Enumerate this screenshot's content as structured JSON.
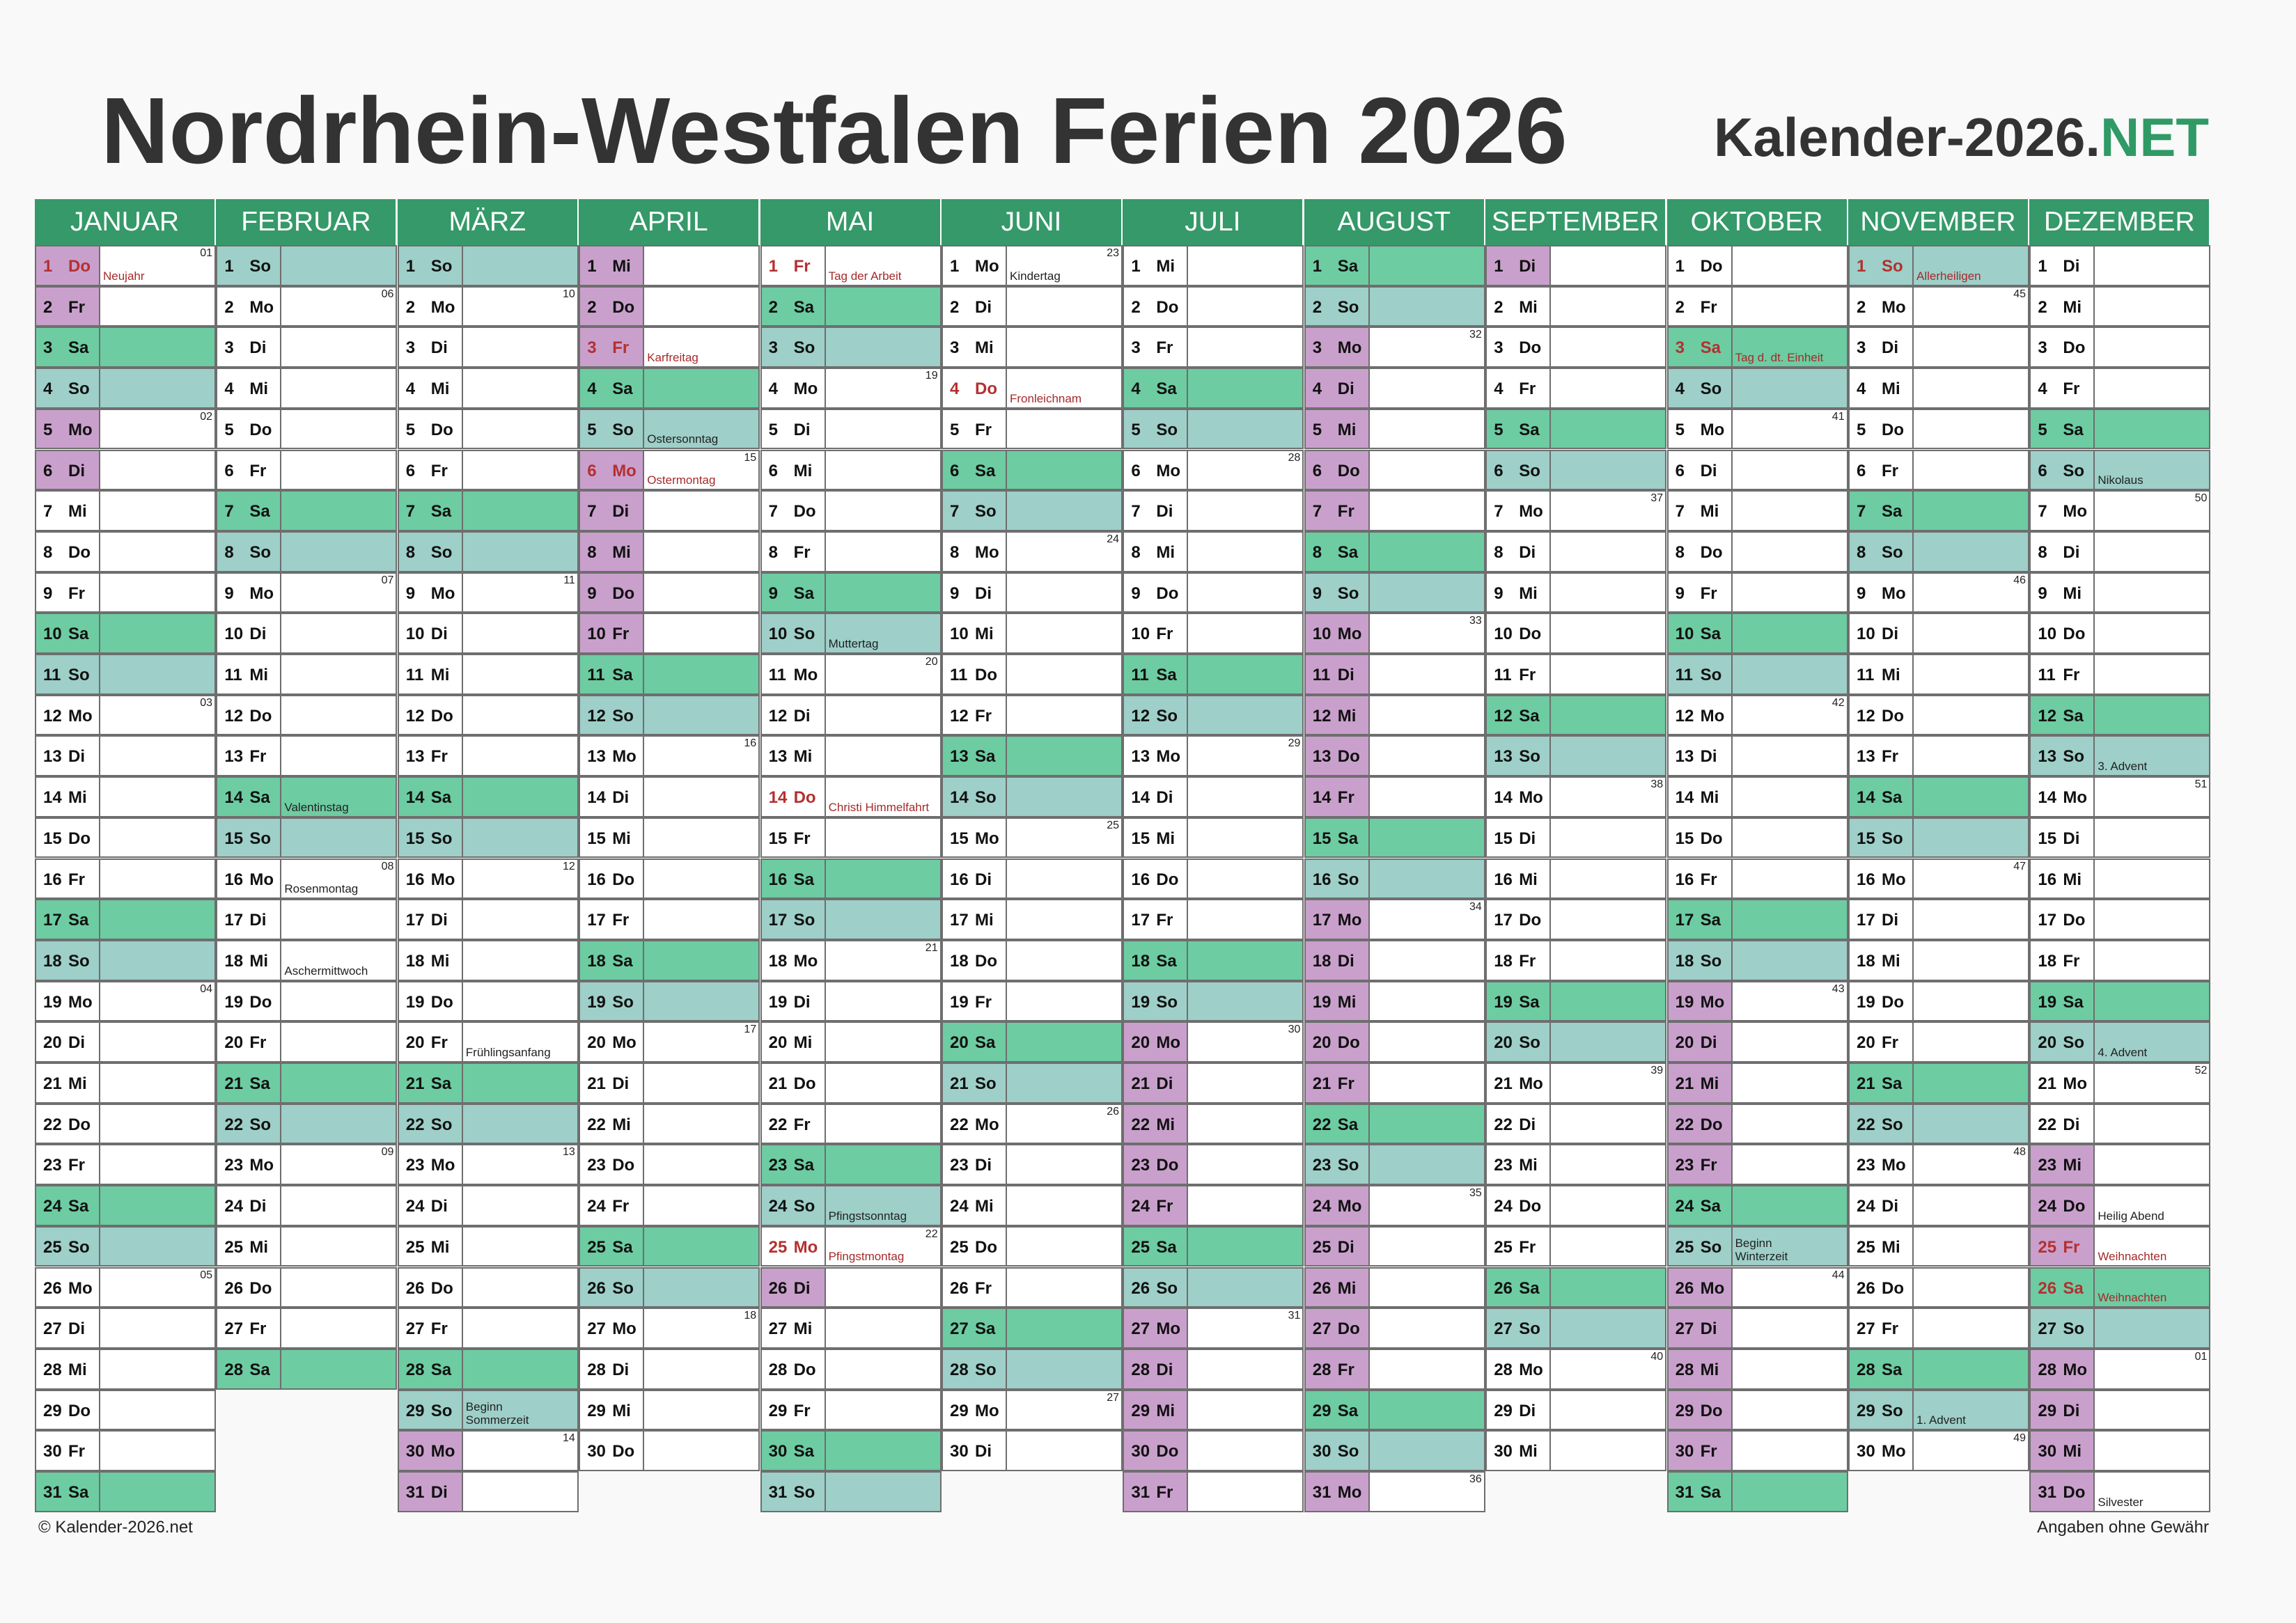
{
  "title": "Nordrhein-Westfalen Ferien 2026",
  "brand": {
    "main": "Kalender-2026.",
    "accent": ".NET"
  },
  "footer": {
    "left": "© Kalender-2026.net",
    "right": "Angaben ohne Gewähr"
  },
  "colors": {
    "header": "#35996a",
    "saturday": "#6dcca2",
    "sunday": "#9ecfc9",
    "vacation": "#c9a0cc",
    "holiday_text": "#b43030"
  },
  "year": 2026,
  "months": [
    "JANUAR",
    "FEBRUAR",
    "MÄRZ",
    "APRIL",
    "MAI",
    "JUNI",
    "JULI",
    "AUGUST",
    "SEPTEMBER",
    "OKTOBER",
    "NOVEMBER",
    "DEZEMBER"
  ],
  "weekdays": [
    "Mo",
    "Di",
    "Mi",
    "Do",
    "Fr",
    "Sa",
    "So"
  ],
  "vacations": [
    {
      "month": 1,
      "from": 1,
      "to": 6
    },
    {
      "month": 3,
      "from": 30,
      "to": 31
    },
    {
      "month": 4,
      "from": 1,
      "to": 11
    },
    {
      "month": 5,
      "from": 26,
      "to": 26
    },
    {
      "month": 7,
      "from": 20,
      "to": 31
    },
    {
      "month": 8,
      "from": 1,
      "to": 31
    },
    {
      "month": 9,
      "from": 1,
      "to": 1
    },
    {
      "month": 10,
      "from": 17,
      "to": 31
    },
    {
      "month": 12,
      "from": 23,
      "to": 31
    }
  ],
  "notes": [
    {
      "month": 1,
      "day": 1,
      "text": "Neujahr",
      "holiday": true
    },
    {
      "month": 2,
      "day": 14,
      "text": "Valentinstag",
      "holiday": false
    },
    {
      "month": 2,
      "day": 16,
      "text": "Rosenmontag",
      "holiday": false
    },
    {
      "month": 2,
      "day": 18,
      "text": "Aschermittwoch",
      "holiday": false
    },
    {
      "month": 3,
      "day": 20,
      "text": "Frühlingsanfang",
      "holiday": false
    },
    {
      "month": 3,
      "day": 29,
      "text": "Beginn\nSommerzeit",
      "holiday": false
    },
    {
      "month": 4,
      "day": 3,
      "text": "Karfreitag",
      "holiday": true
    },
    {
      "month": 4,
      "day": 5,
      "text": "Ostersonntag",
      "holiday": false
    },
    {
      "month": 4,
      "day": 6,
      "text": "Ostermontag",
      "holiday": true
    },
    {
      "month": 5,
      "day": 1,
      "text": "Tag der Arbeit",
      "holiday": true
    },
    {
      "month": 5,
      "day": 10,
      "text": "Muttertag",
      "holiday": false
    },
    {
      "month": 5,
      "day": 14,
      "text": "Christi Himmelfahrt",
      "holiday": true
    },
    {
      "month": 5,
      "day": 24,
      "text": "Pfingstsonntag",
      "holiday": false
    },
    {
      "month": 5,
      "day": 25,
      "text": "Pfingstmontag",
      "holiday": true
    },
    {
      "month": 6,
      "day": 1,
      "text": "Kindertag",
      "holiday": false
    },
    {
      "month": 6,
      "day": 4,
      "text": "Fronleichnam",
      "holiday": true
    },
    {
      "month": 10,
      "day": 3,
      "text": "Tag d. dt. Einheit",
      "holiday": true
    },
    {
      "month": 10,
      "day": 25,
      "text": "Beginn\nWinterzeit",
      "holiday": false
    },
    {
      "month": 11,
      "day": 1,
      "text": "Allerheiligen",
      "holiday": true
    },
    {
      "month": 11,
      "day": 29,
      "text": "1. Advent",
      "holiday": false
    },
    {
      "month": 12,
      "day": 6,
      "text": "Nikolaus",
      "holiday": false
    },
    {
      "month": 12,
      "day": 13,
      "text": "3. Advent",
      "holiday": false
    },
    {
      "month": 12,
      "day": 20,
      "text": "4. Advent",
      "holiday": false
    },
    {
      "month": 12,
      "day": 24,
      "text": "Heilig Abend",
      "holiday": false
    },
    {
      "month": 12,
      "day": 25,
      "text": "Weihnachten",
      "holiday": true
    },
    {
      "month": 12,
      "day": 26,
      "text": "Weihnachten",
      "holiday": true
    },
    {
      "month": 12,
      "day": 31,
      "text": "Silvester",
      "holiday": false
    }
  ],
  "week_numbers": [
    {
      "month": 1,
      "day": 1,
      "kw": "01"
    },
    {
      "month": 1,
      "day": 5,
      "kw": "02"
    },
    {
      "month": 1,
      "day": 12,
      "kw": "03"
    },
    {
      "month": 1,
      "day": 19,
      "kw": "04"
    },
    {
      "month": 1,
      "day": 26,
      "kw": "05"
    },
    {
      "month": 2,
      "day": 2,
      "kw": "06"
    },
    {
      "month": 2,
      "day": 9,
      "kw": "07"
    },
    {
      "month": 2,
      "day": 16,
      "kw": "08"
    },
    {
      "month": 2,
      "day": 23,
      "kw": "09"
    },
    {
      "month": 3,
      "day": 2,
      "kw": "10"
    },
    {
      "month": 3,
      "day": 9,
      "kw": "11"
    },
    {
      "month": 3,
      "day": 16,
      "kw": "12"
    },
    {
      "month": 3,
      "day": 23,
      "kw": "13"
    },
    {
      "month": 3,
      "day": 30,
      "kw": "14"
    },
    {
      "month": 4,
      "day": 6,
      "kw": "15"
    },
    {
      "month": 4,
      "day": 13,
      "kw": "16"
    },
    {
      "month": 4,
      "day": 20,
      "kw": "17"
    },
    {
      "month": 4,
      "day": 27,
      "kw": "18"
    },
    {
      "month": 5,
      "day": 4,
      "kw": "19"
    },
    {
      "month": 5,
      "day": 11,
      "kw": "20"
    },
    {
      "month": 5,
      "day": 18,
      "kw": "21"
    },
    {
      "month": 5,
      "day": 25,
      "kw": "22"
    },
    {
      "month": 6,
      "day": 1,
      "kw": "23"
    },
    {
      "month": 6,
      "day": 8,
      "kw": "24"
    },
    {
      "month": 6,
      "day": 15,
      "kw": "25"
    },
    {
      "month": 6,
      "day": 22,
      "kw": "26"
    },
    {
      "month": 6,
      "day": 29,
      "kw": "27"
    },
    {
      "month": 7,
      "day": 6,
      "kw": "28"
    },
    {
      "month": 7,
      "day": 13,
      "kw": "29"
    },
    {
      "month": 7,
      "day": 20,
      "kw": "30"
    },
    {
      "month": 7,
      "day": 27,
      "kw": "31"
    },
    {
      "month": 8,
      "day": 3,
      "kw": "32"
    },
    {
      "month": 8,
      "day": 10,
      "kw": "33"
    },
    {
      "month": 8,
      "day": 17,
      "kw": "34"
    },
    {
      "month": 8,
      "day": 24,
      "kw": "35"
    },
    {
      "month": 8,
      "day": 31,
      "kw": "36"
    },
    {
      "month": 9,
      "day": 7,
      "kw": "37"
    },
    {
      "month": 9,
      "day": 14,
      "kw": "38"
    },
    {
      "month": 9,
      "day": 21,
      "kw": "39"
    },
    {
      "month": 9,
      "day": 28,
      "kw": "40"
    },
    {
      "month": 10,
      "day": 5,
      "kw": "41"
    },
    {
      "month": 10,
      "day": 12,
      "kw": "42"
    },
    {
      "month": 10,
      "day": 19,
      "kw": "43"
    },
    {
      "month": 10,
      "day": 26,
      "kw": "44"
    },
    {
      "month": 11,
      "day": 2,
      "kw": "45"
    },
    {
      "month": 11,
      "day": 9,
      "kw": "46"
    },
    {
      "month": 11,
      "day": 16,
      "kw": "47"
    },
    {
      "month": 11,
      "day": 23,
      "kw": "48"
    },
    {
      "month": 11,
      "day": 30,
      "kw": "49"
    },
    {
      "month": 12,
      "day": 7,
      "kw": "50"
    },
    {
      "month": 12,
      "day": 14,
      "kw": "51"
    },
    {
      "month": 12,
      "day": 21,
      "kw": "52"
    },
    {
      "month": 12,
      "day": 28,
      "kw": "01"
    }
  ]
}
